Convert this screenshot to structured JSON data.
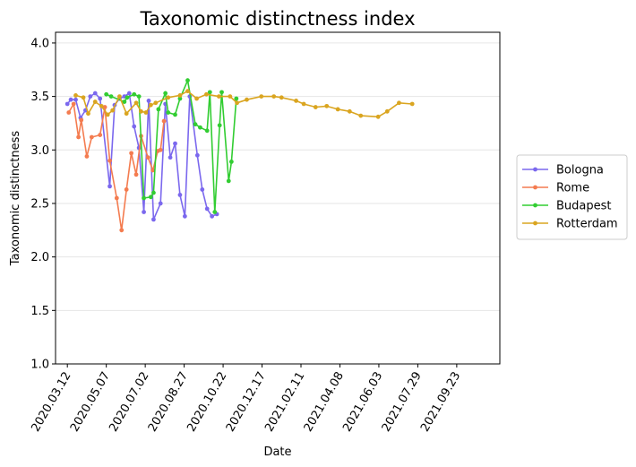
{
  "chart_data": {
    "type": "line",
    "title": "Taxonomic distinctness index",
    "xlabel": "Date",
    "ylabel": "Taxonomic distinctness",
    "ylim": [
      1.0,
      4.1
    ],
    "xlim": [
      "2020-02-24",
      "2021-11-24"
    ],
    "grid": "horizontal",
    "legend_position": "center-right",
    "x_ticks": [
      "2020.03.12",
      "2020.05.07",
      "2020.07.02",
      "2020.08.27",
      "2020.10.22",
      "2020.12.17",
      "2021.02.11",
      "2021.04.08",
      "2021.06.03",
      "2021.07.29",
      "2021.09.23"
    ],
    "y_ticks": [
      "1.0",
      "1.5",
      "2.0",
      "2.5",
      "3.0",
      "3.5",
      "4.0"
    ],
    "series": [
      {
        "name": "Bologna",
        "color": "#7b68ee",
        "points": [
          [
            "2020-03-12",
            3.43
          ],
          [
            "2020-03-17",
            3.47
          ],
          [
            "2020-03-24",
            3.47
          ],
          [
            "2020-03-31",
            3.3
          ],
          [
            "2020-04-07",
            3.37
          ],
          [
            "2020-04-14",
            3.5
          ],
          [
            "2020-04-21",
            3.53
          ],
          [
            "2020-04-28",
            3.48
          ],
          [
            "2020-05-12",
            2.66
          ],
          [
            "2020-05-19",
            3.42
          ],
          [
            "2020-05-26",
            3.48
          ],
          [
            "2020-06-02",
            3.5
          ],
          [
            "2020-06-09",
            3.53
          ],
          [
            "2020-06-16",
            3.22
          ],
          [
            "2020-06-23",
            3.02
          ],
          [
            "2020-06-30",
            2.42
          ],
          [
            "2020-07-07",
            3.46
          ],
          [
            "2020-07-14",
            2.35
          ],
          [
            "2020-07-24",
            2.5
          ],
          [
            "2020-07-31",
            3.43
          ],
          [
            "2020-08-07",
            2.93
          ],
          [
            "2020-08-14",
            3.06
          ],
          [
            "2020-08-21",
            2.58
          ],
          [
            "2020-08-28",
            2.38
          ],
          [
            "2020-09-04",
            3.5
          ],
          [
            "2020-09-15",
            2.95
          ],
          [
            "2020-09-22",
            2.63
          ],
          [
            "2020-09-29",
            2.45
          ],
          [
            "2020-10-06",
            2.38
          ],
          [
            "2020-10-13",
            2.4
          ]
        ]
      },
      {
        "name": "Rome",
        "color": "#f47c50",
        "points": [
          [
            "2020-03-14",
            3.35
          ],
          [
            "2020-03-21",
            3.43
          ],
          [
            "2020-03-28",
            3.12
          ],
          [
            "2020-04-01",
            3.28
          ],
          [
            "2020-04-09",
            2.94
          ],
          [
            "2020-04-16",
            3.12
          ],
          [
            "2020-04-28",
            3.14
          ],
          [
            "2020-05-05",
            3.4
          ],
          [
            "2020-05-12",
            2.9
          ],
          [
            "2020-05-22",
            2.55
          ],
          [
            "2020-05-29",
            2.25
          ],
          [
            "2020-06-05",
            2.63
          ],
          [
            "2020-06-12",
            2.97
          ],
          [
            "2020-06-19",
            2.77
          ],
          [
            "2020-06-26",
            3.13
          ],
          [
            "2020-07-06",
            2.93
          ],
          [
            "2020-07-13",
            2.81
          ],
          [
            "2020-07-20",
            2.99
          ],
          [
            "2020-07-24",
            3.0
          ],
          [
            "2020-07-29",
            3.27
          ]
        ]
      },
      {
        "name": "Budapest",
        "color": "#32cd32",
        "points": [
          [
            "2020-05-07",
            3.52
          ],
          [
            "2020-05-14",
            3.5
          ],
          [
            "2020-06-02",
            3.45
          ],
          [
            "2020-06-06",
            3.49
          ],
          [
            "2020-06-16",
            3.52
          ],
          [
            "2020-06-23",
            3.5
          ],
          [
            "2020-06-30",
            2.55
          ],
          [
            "2020-07-10",
            2.56
          ],
          [
            "2020-07-14",
            2.6
          ],
          [
            "2020-07-21",
            3.38
          ],
          [
            "2020-07-31",
            3.53
          ],
          [
            "2020-08-04",
            3.35
          ],
          [
            "2020-08-14",
            3.33
          ],
          [
            "2020-08-21",
            3.48
          ],
          [
            "2020-09-01",
            3.65
          ],
          [
            "2020-09-12",
            3.24
          ],
          [
            "2020-09-19",
            3.21
          ],
          [
            "2020-09-29",
            3.18
          ],
          [
            "2020-10-03",
            3.54
          ],
          [
            "2020-10-10",
            2.42
          ],
          [
            "2020-10-17",
            3.23
          ],
          [
            "2020-10-20",
            3.54
          ],
          [
            "2020-10-30",
            2.71
          ],
          [
            "2020-11-03",
            2.89
          ],
          [
            "2020-11-10",
            3.48
          ]
        ]
      },
      {
        "name": "Rotterdam",
        "color": "#daa520",
        "points": [
          [
            "2020-03-24",
            3.51
          ],
          [
            "2020-04-04",
            3.49
          ],
          [
            "2020-04-11",
            3.34
          ],
          [
            "2020-04-21",
            3.45
          ],
          [
            "2020-04-30",
            3.41
          ],
          [
            "2020-05-09",
            3.33
          ],
          [
            "2020-05-16",
            3.37
          ],
          [
            "2020-05-26",
            3.5
          ],
          [
            "2020-06-05",
            3.34
          ],
          [
            "2020-06-19",
            3.44
          ],
          [
            "2020-06-26",
            3.36
          ],
          [
            "2020-07-03",
            3.35
          ],
          [
            "2020-07-10",
            3.42
          ],
          [
            "2020-07-17",
            3.44
          ],
          [
            "2020-08-04",
            3.49
          ],
          [
            "2020-08-21",
            3.51
          ],
          [
            "2020-09-01",
            3.55
          ],
          [
            "2020-09-14",
            3.48
          ],
          [
            "2020-09-28",
            3.52
          ],
          [
            "2020-10-16",
            3.5
          ],
          [
            "2020-11-01",
            3.5
          ],
          [
            "2020-11-11",
            3.44
          ],
          [
            "2020-11-25",
            3.47
          ],
          [
            "2020-12-16",
            3.5
          ],
          [
            "2021-01-03",
            3.5
          ],
          [
            "2021-01-14",
            3.49
          ],
          [
            "2021-02-04",
            3.46
          ],
          [
            "2021-02-15",
            3.43
          ],
          [
            "2021-03-04",
            3.4
          ],
          [
            "2021-03-20",
            3.41
          ],
          [
            "2021-04-05",
            3.38
          ],
          [
            "2021-04-22",
            3.36
          ],
          [
            "2021-05-08",
            3.32
          ],
          [
            "2021-06-02",
            3.31
          ],
          [
            "2021-06-15",
            3.36
          ],
          [
            "2021-07-02",
            3.44
          ],
          [
            "2021-07-21",
            3.43
          ]
        ]
      }
    ]
  }
}
